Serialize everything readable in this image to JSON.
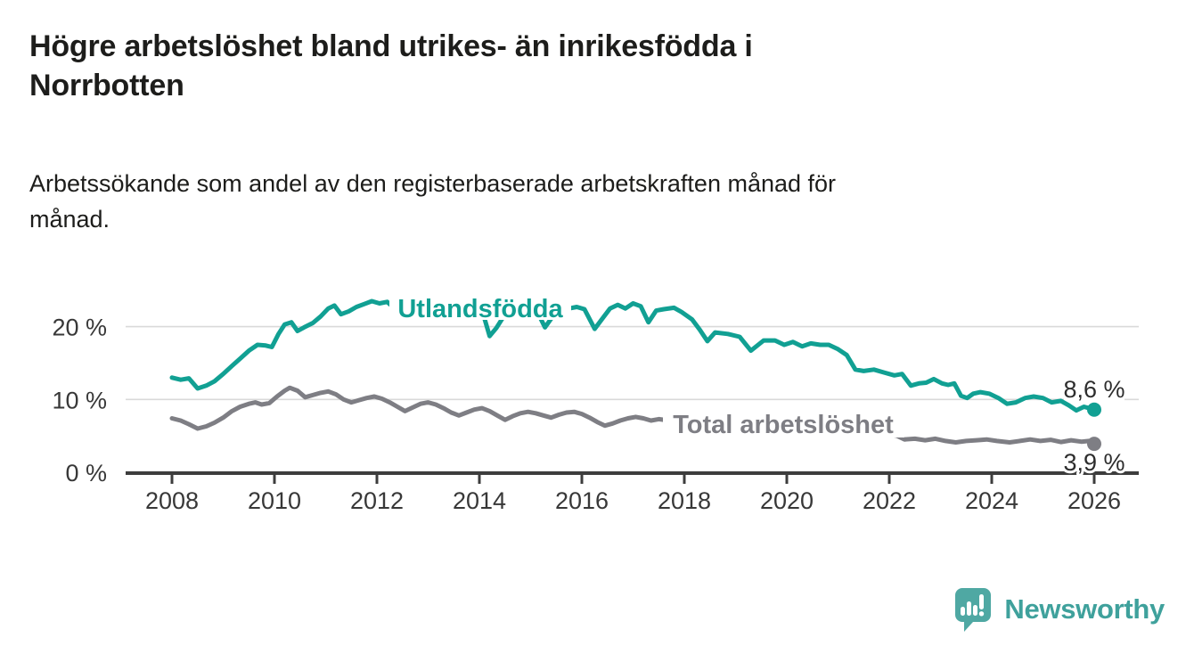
{
  "header": {
    "title_line1": "Högre arbetslöshet bland utrikes- än inrikesfödda i",
    "title_line2": "Norrbotten",
    "subtitle_line1": "Arbetssökande som andel av den registerbaserade arbetskraften månad för",
    "subtitle_line2": "månad."
  },
  "chart_data": {
    "type": "line",
    "title": "Högre arbetslöshet bland utrikes- än inrikesfödda i Norrbotten",
    "subtitle": "Arbetssökande som andel av den registerbaserade arbetskraften månad för månad.",
    "xlabel": "",
    "ylabel": "",
    "grid": "horizontal",
    "legend_position": "inline-line-labels",
    "x_axis": {
      "ticks": [
        2008,
        2010,
        2012,
        2014,
        2016,
        2018,
        2020,
        2022,
        2024,
        2026
      ],
      "range": [
        2007.1,
        2026.9
      ]
    },
    "y_axis": {
      "ticks": [
        {
          "value": 0,
          "label": "0 %"
        },
        {
          "value": 10,
          "label": "10 %"
        },
        {
          "value": 20,
          "label": "20 %"
        }
      ],
      "range": [
        0,
        24.5
      ]
    },
    "colors": {
      "axis": "#3d3d3d",
      "grid": "#d9d9d9",
      "tick_text": "#383838",
      "end_label_text": "#2d2d2d"
    },
    "series": [
      {
        "name": "Utlandsfödda",
        "line_label": "Utlandsfödda",
        "color": "#11a093",
        "end_label": "8,6 %",
        "end_value": 8.6,
        "points": [
          [
            2008.0,
            13.0
          ],
          [
            2008.17,
            12.7
          ],
          [
            2008.33,
            12.9
          ],
          [
            2008.5,
            11.5
          ],
          [
            2008.67,
            11.9
          ],
          [
            2008.83,
            12.5
          ],
          [
            2009.0,
            13.5
          ],
          [
            2009.17,
            14.6
          ],
          [
            2009.33,
            15.6
          ],
          [
            2009.5,
            16.7
          ],
          [
            2009.67,
            17.5
          ],
          [
            2009.83,
            17.4
          ],
          [
            2009.95,
            17.2
          ],
          [
            2010.08,
            19.0
          ],
          [
            2010.2,
            20.3
          ],
          [
            2010.33,
            20.6
          ],
          [
            2010.45,
            19.4
          ],
          [
            2010.58,
            19.9
          ],
          [
            2010.75,
            20.5
          ],
          [
            2010.9,
            21.4
          ],
          [
            2011.05,
            22.5
          ],
          [
            2011.17,
            22.9
          ],
          [
            2011.3,
            21.7
          ],
          [
            2011.45,
            22.1
          ],
          [
            2011.6,
            22.7
          ],
          [
            2011.75,
            23.1
          ],
          [
            2011.9,
            23.5
          ],
          [
            2012.05,
            23.2
          ],
          [
            2012.2,
            23.4
          ],
          [
            2012.35,
            22.5
          ],
          [
            2012.5,
            21.3
          ],
          [
            2012.63,
            22.1
          ],
          [
            2012.78,
            22.6
          ],
          [
            2012.92,
            22.3
          ],
          [
            2013.08,
            22.8
          ],
          [
            2013.25,
            22.0
          ],
          [
            2013.42,
            21.3
          ],
          [
            2013.58,
            21.9
          ],
          [
            2013.75,
            22.4
          ],
          [
            2013.9,
            21.9
          ],
          [
            2014.05,
            22.3
          ],
          [
            2014.2,
            18.7
          ],
          [
            2014.33,
            19.8
          ],
          [
            2014.5,
            21.7
          ],
          [
            2014.67,
            22.2
          ],
          [
            2014.83,
            22.4
          ],
          [
            2014.95,
            22.1
          ],
          [
            2015.1,
            22.5
          ],
          [
            2015.28,
            19.9
          ],
          [
            2015.42,
            21.3
          ],
          [
            2015.58,
            22.1
          ],
          [
            2015.75,
            22.5
          ],
          [
            2015.9,
            22.7
          ],
          [
            2016.05,
            22.4
          ],
          [
            2016.25,
            19.7
          ],
          [
            2016.4,
            21.1
          ],
          [
            2016.55,
            22.5
          ],
          [
            2016.7,
            23.0
          ],
          [
            2016.85,
            22.5
          ],
          [
            2017.0,
            23.2
          ],
          [
            2017.15,
            22.8
          ],
          [
            2017.3,
            20.6
          ],
          [
            2017.45,
            22.2
          ],
          [
            2017.6,
            22.4
          ],
          [
            2017.8,
            22.6
          ],
          [
            2017.95,
            22.0
          ],
          [
            2018.15,
            21.0
          ],
          [
            2018.3,
            19.6
          ],
          [
            2018.45,
            18.0
          ],
          [
            2018.6,
            19.2
          ],
          [
            2018.85,
            19.0
          ],
          [
            2019.08,
            18.6
          ],
          [
            2019.3,
            16.7
          ],
          [
            2019.55,
            18.1
          ],
          [
            2019.77,
            18.1
          ],
          [
            2019.95,
            17.5
          ],
          [
            2020.12,
            17.9
          ],
          [
            2020.3,
            17.3
          ],
          [
            2020.47,
            17.7
          ],
          [
            2020.65,
            17.5
          ],
          [
            2020.82,
            17.5
          ],
          [
            2021.0,
            16.9
          ],
          [
            2021.17,
            16.1
          ],
          [
            2021.34,
            14.1
          ],
          [
            2021.5,
            13.9
          ],
          [
            2021.7,
            14.1
          ],
          [
            2021.9,
            13.7
          ],
          [
            2022.1,
            13.3
          ],
          [
            2022.25,
            13.5
          ],
          [
            2022.42,
            11.9
          ],
          [
            2022.58,
            12.2
          ],
          [
            2022.72,
            12.3
          ],
          [
            2022.87,
            12.8
          ],
          [
            2023.03,
            12.2
          ],
          [
            2023.15,
            12.0
          ],
          [
            2023.27,
            12.2
          ],
          [
            2023.4,
            10.5
          ],
          [
            2023.52,
            10.2
          ],
          [
            2023.64,
            10.8
          ],
          [
            2023.78,
            11.0
          ],
          [
            2023.95,
            10.8
          ],
          [
            2024.13,
            10.2
          ],
          [
            2024.3,
            9.4
          ],
          [
            2024.47,
            9.6
          ],
          [
            2024.65,
            10.2
          ],
          [
            2024.82,
            10.4
          ],
          [
            2025.0,
            10.2
          ],
          [
            2025.17,
            9.6
          ],
          [
            2025.35,
            9.8
          ],
          [
            2025.5,
            9.2
          ],
          [
            2025.65,
            8.5
          ],
          [
            2025.8,
            9.0
          ],
          [
            2026.0,
            8.6
          ]
        ]
      },
      {
        "name": "Total arbetslöshet",
        "line_label": "Total arbetslöshet",
        "color": "#7e7e84",
        "end_label": "3,9 %",
        "end_value": 3.9,
        "points": [
          [
            2008.0,
            7.4
          ],
          [
            2008.17,
            7.1
          ],
          [
            2008.33,
            6.6
          ],
          [
            2008.5,
            6.0
          ],
          [
            2008.67,
            6.3
          ],
          [
            2008.83,
            6.8
          ],
          [
            2009.0,
            7.5
          ],
          [
            2009.17,
            8.4
          ],
          [
            2009.33,
            9.0
          ],
          [
            2009.5,
            9.4
          ],
          [
            2009.63,
            9.6
          ],
          [
            2009.75,
            9.3
          ],
          [
            2009.9,
            9.5
          ],
          [
            2010.05,
            10.4
          ],
          [
            2010.2,
            11.2
          ],
          [
            2010.3,
            11.6
          ],
          [
            2010.45,
            11.2
          ],
          [
            2010.6,
            10.3
          ],
          [
            2010.75,
            10.6
          ],
          [
            2010.9,
            10.9
          ],
          [
            2011.05,
            11.1
          ],
          [
            2011.2,
            10.7
          ],
          [
            2011.35,
            10.0
          ],
          [
            2011.5,
            9.6
          ],
          [
            2011.65,
            9.9
          ],
          [
            2011.8,
            10.2
          ],
          [
            2011.95,
            10.4
          ],
          [
            2012.1,
            10.1
          ],
          [
            2012.25,
            9.6
          ],
          [
            2012.4,
            9.0
          ],
          [
            2012.55,
            8.4
          ],
          [
            2012.7,
            8.9
          ],
          [
            2012.85,
            9.4
          ],
          [
            2013.0,
            9.6
          ],
          [
            2013.15,
            9.3
          ],
          [
            2013.3,
            8.8
          ],
          [
            2013.45,
            8.2
          ],
          [
            2013.6,
            7.8
          ],
          [
            2013.75,
            8.2
          ],
          [
            2013.9,
            8.6
          ],
          [
            2014.05,
            8.8
          ],
          [
            2014.2,
            8.4
          ],
          [
            2014.35,
            7.8
          ],
          [
            2014.5,
            7.2
          ],
          [
            2014.65,
            7.7
          ],
          [
            2014.8,
            8.1
          ],
          [
            2014.95,
            8.3
          ],
          [
            2015.1,
            8.1
          ],
          [
            2015.25,
            7.8
          ],
          [
            2015.4,
            7.5
          ],
          [
            2015.55,
            7.9
          ],
          [
            2015.7,
            8.2
          ],
          [
            2015.85,
            8.3
          ],
          [
            2016.0,
            8.0
          ],
          [
            2016.15,
            7.5
          ],
          [
            2016.3,
            6.9
          ],
          [
            2016.45,
            6.4
          ],
          [
            2016.6,
            6.7
          ],
          [
            2016.75,
            7.1
          ],
          [
            2016.9,
            7.4
          ],
          [
            2017.05,
            7.6
          ],
          [
            2017.2,
            7.4
          ],
          [
            2017.35,
            7.1
          ],
          [
            2017.5,
            7.3
          ],
          [
            2017.7,
            7.1
          ],
          [
            2018.0,
            6.9
          ],
          [
            2018.4,
            6.2
          ],
          [
            2018.8,
            6.5
          ],
          [
            2019.2,
            6.0
          ],
          [
            2019.6,
            6.3
          ],
          [
            2020.0,
            6.5
          ],
          [
            2020.4,
            6.8
          ],
          [
            2020.8,
            6.4
          ],
          [
            2021.2,
            5.8
          ],
          [
            2021.6,
            5.3
          ],
          [
            2022.0,
            5.2
          ],
          [
            2022.15,
            5.0
          ],
          [
            2022.3,
            4.5
          ],
          [
            2022.5,
            4.6
          ],
          [
            2022.7,
            4.4
          ],
          [
            2022.9,
            4.6
          ],
          [
            2023.1,
            4.3
          ],
          [
            2023.3,
            4.1
          ],
          [
            2023.5,
            4.3
          ],
          [
            2023.7,
            4.4
          ],
          [
            2023.9,
            4.5
          ],
          [
            2024.1,
            4.3
          ],
          [
            2024.35,
            4.1
          ],
          [
            2024.55,
            4.3
          ],
          [
            2024.75,
            4.5
          ],
          [
            2024.95,
            4.3
          ],
          [
            2025.15,
            4.45
          ],
          [
            2025.35,
            4.15
          ],
          [
            2025.55,
            4.4
          ],
          [
            2025.75,
            4.2
          ],
          [
            2025.9,
            4.3
          ],
          [
            2026.0,
            3.9
          ]
        ]
      }
    ]
  },
  "footer": {
    "brand": "Newsworthy",
    "brand_color": "#3fa19c",
    "logo_icon": "speech-bubble-bar-chart-exclamation"
  }
}
